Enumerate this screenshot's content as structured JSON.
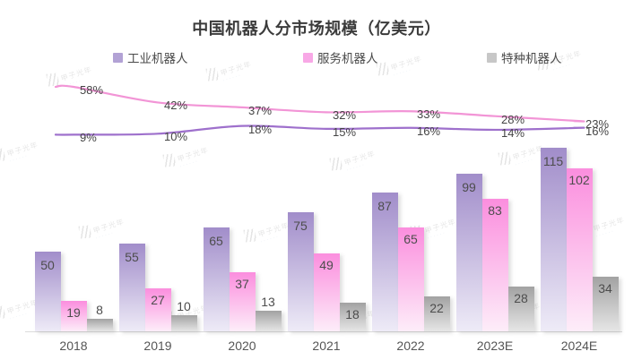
{
  "watermark": {
    "text": "甲子光年"
  },
  "chart_data": {
    "type": "bar+line",
    "title": "中国机器人分市场规模（亿美元）",
    "categories": [
      "2018",
      "2019",
      "2020",
      "2021",
      "2022",
      "2023E",
      "2024E"
    ],
    "legend_position": "top",
    "grid": false,
    "y_axis": "hidden",
    "value_labels_shown": true,
    "bar_series": [
      {
        "name": "工业机器人",
        "values": [
          50,
          55,
          65,
          75,
          87,
          99,
          115
        ],
        "color_top": "#a18dca",
        "color_bottom": "#eeebf7",
        "legend_color": "#b2a2d5"
      },
      {
        "name": "服务机器人",
        "values": [
          19,
          27,
          37,
          49,
          65,
          83,
          102
        ],
        "color_top": "#fb8ede",
        "color_bottom": "#fdedf9",
        "legend_color": "#f8a8e6"
      },
      {
        "name": "特种机器人",
        "values": [
          8,
          10,
          13,
          18,
          22,
          28,
          34
        ],
        "color_top": "#a2a2a2",
        "color_bottom": "#e6e6e6",
        "legend_color": "#c7c7c7"
      }
    ],
    "line_series": [
      {
        "name": "服务机器人",
        "yoy_growth_pct": [
          58,
          42,
          37,
          32,
          33,
          28,
          23
        ],
        "color": "#f295d6"
      },
      {
        "name": "工业机器人",
        "yoy_growth_pct": [
          9,
          10,
          18,
          15,
          16,
          14,
          16
        ],
        "color": "#9e70cc"
      }
    ]
  }
}
